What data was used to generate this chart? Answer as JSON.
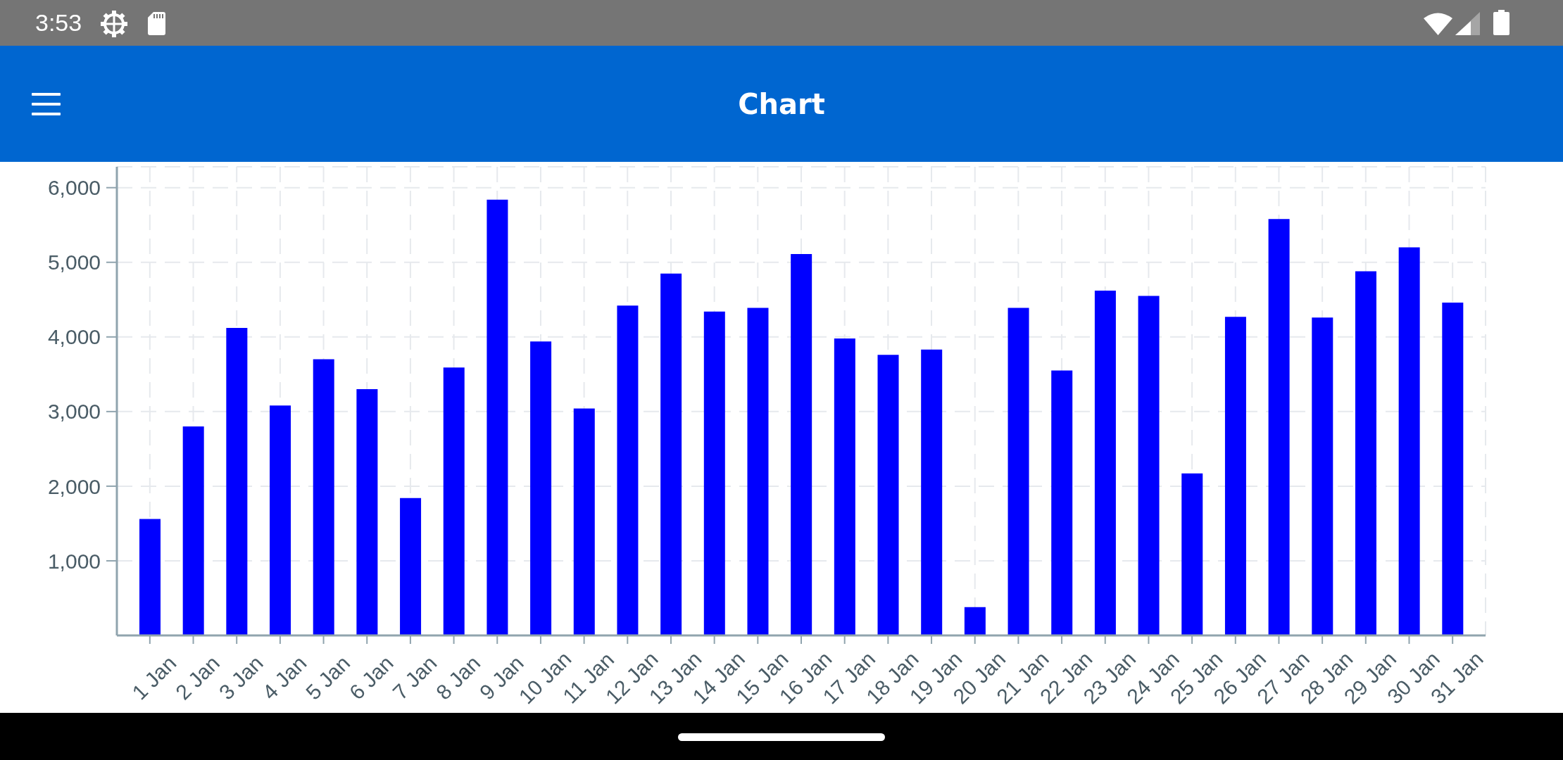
{
  "chart_data": {
    "type": "bar",
    "title": "Chart",
    "annotations": [
      "3:53"
    ],
    "categories": [
      "1 Jan",
      "2 Jan",
      "3 Jan",
      "4 Jan",
      "5 Jan",
      "6 Jan",
      "7 Jan",
      "8 Jan",
      "9 Jan",
      "10 Jan",
      "11 Jan",
      "12 Jan",
      "13 Jan",
      "14 Jan",
      "15 Jan",
      "16 Jan",
      "17 Jan",
      "18 Jan",
      "19 Jan",
      "20 Jan",
      "21 Jan",
      "22 Jan",
      "23 Jan",
      "24 Jan",
      "25 Jan",
      "26 Jan",
      "27 Jan",
      "28 Jan",
      "29 Jan",
      "30 Jan",
      "31 Jan"
    ],
    "values": [
      1560,
      2800,
      4120,
      3080,
      3700,
      3300,
      1840,
      3590,
      5840,
      3940,
      3040,
      4420,
      4850,
      4340,
      4390,
      5110,
      3980,
      3760,
      3830,
      380,
      4390,
      3550,
      4620,
      4550,
      2170,
      4270,
      5580,
      4260,
      4880,
      5200,
      4460
    ],
    "color": "#0000ff",
    "ylim": [
      0,
      6280
    ],
    "yticks": [
      {
        "value": 1000,
        "label": "1,000"
      },
      {
        "value": 2000,
        "label": "2,000"
      },
      {
        "value": 3000,
        "label": "3,000"
      },
      {
        "value": 4000,
        "label": "4,000"
      },
      {
        "value": 5000,
        "label": "5,000"
      },
      {
        "value": 6000,
        "label": "6,000"
      }
    ],
    "grid": true
  }
}
